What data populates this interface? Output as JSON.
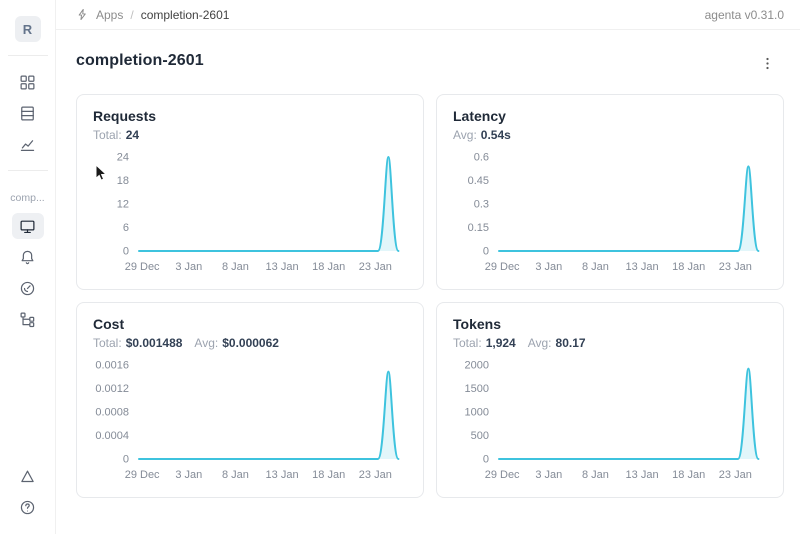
{
  "header": {
    "breadcrumb": {
      "icon": "bolt-icon",
      "items": [
        {
          "label": "Apps"
        },
        {
          "label": "completion-2601"
        }
      ],
      "separator": "/"
    },
    "version_label": "agenta v0.31.0"
  },
  "sidebar": {
    "logo_letter": "R",
    "workspace_label": "comp...",
    "top_nav_icons": [
      "apps-grid-icon",
      "registry-rows-icon",
      "line-chart-icon"
    ],
    "app_nav_icons": [
      "playground-monitor-icon",
      "bell-icon",
      "gauge-icon",
      "traces-tree-icon"
    ],
    "selected_icon": "playground-monitor-icon",
    "bottom_icons": [
      "triangle-icon",
      "help-circle-icon"
    ]
  },
  "page": {
    "title": "completion-2601",
    "menu_icon": "kebab-menu-icon"
  },
  "chart_data": [
    {
      "type": "line",
      "title": "Requests",
      "stats": [
        {
          "label": "Total:",
          "value": "24"
        }
      ],
      "x_ticks": [
        "29 Dec",
        "3 Jan",
        "8 Jan",
        "13 Jan",
        "18 Jan",
        "23 Jan"
      ],
      "y_ticks": [
        "0",
        "6",
        "12",
        "18",
        "24"
      ],
      "ylim": [
        0,
        24
      ],
      "xlabel": "",
      "ylabel": "",
      "grid": false,
      "legend": false,
      "line_color": "#3ec3de",
      "fill_color": "rgba(62,195,222,0.15)",
      "series": [
        {
          "name": "requests",
          "baseline_value": 0,
          "spike": {
            "peak_value": 24,
            "rise_start_x_frac": 0.912,
            "peak_x_frac": 0.952,
            "end_x_frac": 0.99
          }
        }
      ]
    },
    {
      "type": "line",
      "title": "Latency",
      "stats": [
        {
          "label": "Avg:",
          "value": "0.54s"
        }
      ],
      "x_ticks": [
        "29 Dec",
        "3 Jan",
        "8 Jan",
        "13 Jan",
        "18 Jan",
        "23 Jan"
      ],
      "y_ticks": [
        "0",
        "0.15",
        "0.3",
        "0.45",
        "0.6"
      ],
      "ylim": [
        0,
        0.6
      ],
      "xlabel": "",
      "ylabel": "",
      "grid": false,
      "legend": false,
      "line_color": "#3ec3de",
      "fill_color": "rgba(62,195,222,0.15)",
      "series": [
        {
          "name": "latency_seconds",
          "baseline_value": 0,
          "spike": {
            "peak_value": 0.54,
            "rise_start_x_frac": 0.912,
            "peak_x_frac": 0.952,
            "end_x_frac": 0.99
          }
        }
      ]
    },
    {
      "type": "line",
      "title": "Cost",
      "stats": [
        {
          "label": "Total:",
          "value": "$0.001488"
        },
        {
          "label": "Avg:",
          "value": "$0.000062"
        }
      ],
      "x_ticks": [
        "29 Dec",
        "3 Jan",
        "8 Jan",
        "13 Jan",
        "18 Jan",
        "23 Jan"
      ],
      "y_ticks": [
        "0",
        "0.0004",
        "0.0008",
        "0.0012",
        "0.0016"
      ],
      "ylim": [
        0,
        0.0016
      ],
      "xlabel": "",
      "ylabel": "",
      "grid": false,
      "legend": false,
      "line_color": "#3ec3de",
      "fill_color": "rgba(62,195,222,0.15)",
      "series": [
        {
          "name": "cost_usd",
          "baseline_value": 0,
          "spike": {
            "peak_value": 0.001488,
            "rise_start_x_frac": 0.912,
            "peak_x_frac": 0.952,
            "end_x_frac": 0.99
          }
        }
      ]
    },
    {
      "type": "line",
      "title": "Tokens",
      "stats": [
        {
          "label": "Total:",
          "value": "1,924"
        },
        {
          "label": "Avg:",
          "value": "80.17"
        }
      ],
      "x_ticks": [
        "29 Dec",
        "3 Jan",
        "8 Jan",
        "13 Jan",
        "18 Jan",
        "23 Jan"
      ],
      "y_ticks": [
        "0",
        "500",
        "1000",
        "1500",
        "2000"
      ],
      "ylim": [
        0,
        2000
      ],
      "xlabel": "",
      "ylabel": "",
      "grid": false,
      "legend": false,
      "line_color": "#3ec3de",
      "fill_color": "rgba(62,195,222,0.15)",
      "series": [
        {
          "name": "tokens",
          "baseline_value": 0,
          "spike": {
            "peak_value": 1924,
            "rise_start_x_frac": 0.912,
            "peak_x_frac": 0.952,
            "end_x_frac": 0.99
          }
        }
      ]
    }
  ]
}
